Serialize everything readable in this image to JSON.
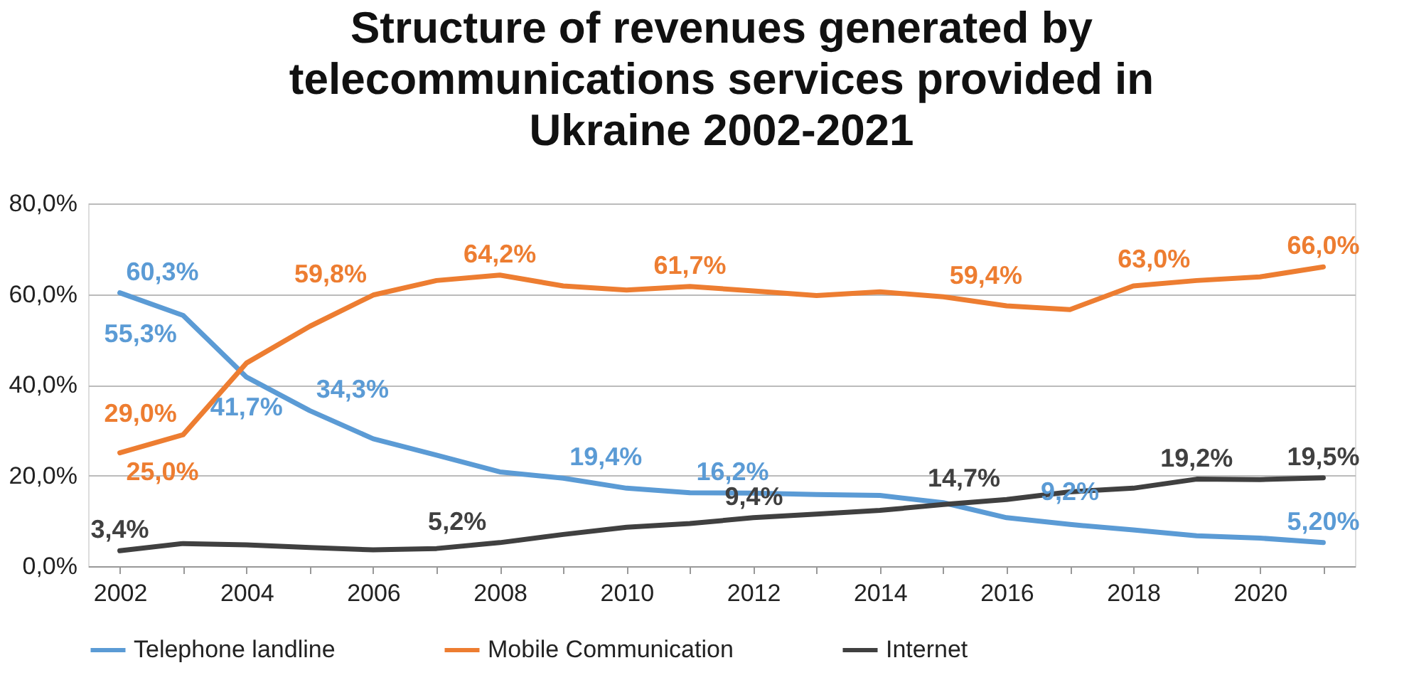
{
  "chart_data": {
    "type": "line",
    "title": "Structure of revenues generated by telecommunications services provided in Ukraine 2002-2021",
    "categories": [
      "2002",
      null,
      "2004",
      null,
      "2006",
      null,
      "2008",
      null,
      "2010",
      null,
      "2012",
      null,
      "2014",
      null,
      "2016",
      null,
      "2018",
      null,
      "2020",
      null
    ],
    "series": [
      {
        "name": "Telephone landline",
        "color": "#5b9bd5",
        "values": [
          60.3,
          55.3,
          41.7,
          34.3,
          28.1,
          24.5,
          20.8,
          19.4,
          17.2,
          16.2,
          16.1,
          15.8,
          15.6,
          14.0,
          10.7,
          9.2,
          8.0,
          6.7,
          6.2,
          5.2
        ],
        "value_labels": [
          "60,3%",
          "55,3%",
          "41,7%",
          "34,3%",
          null,
          null,
          null,
          "19,4%",
          null,
          "16,2%",
          null,
          null,
          null,
          null,
          null,
          "9,2%",
          null,
          null,
          null,
          "5,20%"
        ]
      },
      {
        "name": "Mobile Communication",
        "color": "#ed7d31",
        "values": [
          25.0,
          29.0,
          44.8,
          52.9,
          59.8,
          63.0,
          64.2,
          61.8,
          60.9,
          61.7,
          60.7,
          59.7,
          60.5,
          59.4,
          57.4,
          56.6,
          61.8,
          63.0,
          63.8,
          66.0
        ],
        "value_labels": [
          "25,0%",
          "29,0%",
          null,
          null,
          "59,8%",
          null,
          "64,2%",
          null,
          null,
          "61,7%",
          null,
          null,
          null,
          "59,4%",
          null,
          null,
          null,
          "63,0%",
          null,
          "66,0%"
        ]
      },
      {
        "name": "Internet",
        "color": "#404040",
        "values": [
          3.4,
          5.0,
          4.7,
          4.1,
          3.6,
          3.9,
          5.2,
          7.0,
          8.6,
          9.4,
          10.7,
          11.5,
          12.3,
          13.6,
          14.7,
          16.4,
          17.2,
          19.2,
          19.1,
          19.5
        ],
        "value_labels": [
          "3,4%",
          null,
          null,
          null,
          null,
          null,
          "5,2%",
          null,
          null,
          "9,4%",
          null,
          null,
          null,
          null,
          "14,7%",
          null,
          null,
          "19,2%",
          null,
          "19,5%"
        ]
      }
    ],
    "ylim": [
      0,
      80
    ],
    "yticks": [
      {
        "value": 0,
        "label": "0,0%"
      },
      {
        "value": 20,
        "label": "20,0%"
      },
      {
        "value": 40,
        "label": "40,0%"
      },
      {
        "value": 60,
        "label": "60,0%"
      },
      {
        "value": 80,
        "label": "80,0%"
      }
    ],
    "grid": "y",
    "legend": "bottom",
    "line_style": "solid"
  }
}
